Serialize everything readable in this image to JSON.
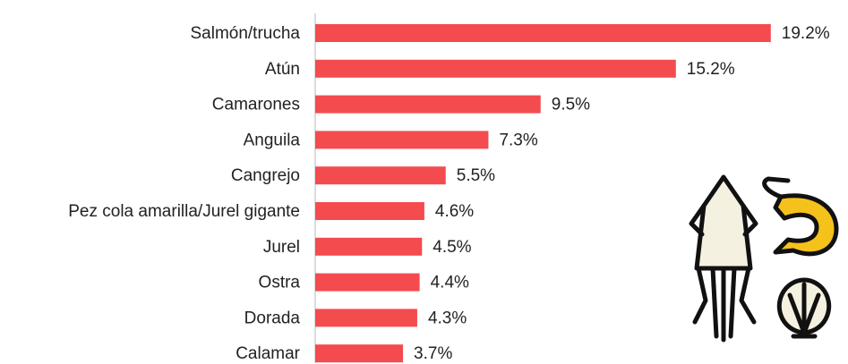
{
  "chart_data": {
    "type": "barh",
    "categories": [
      "Salmón/trucha",
      "Atún",
      "Camarones",
      "Anguila",
      "Cangrejo",
      "Pez cola amarilla/Jurel gigante",
      "Jurel",
      "Ostra",
      "Dorada",
      "Calamar"
    ],
    "values": [
      19.2,
      15.2,
      9.5,
      7.3,
      5.5,
      4.6,
      4.5,
      4.4,
      4.3,
      3.7
    ],
    "value_labels": [
      "19.2%",
      "15.2%",
      "9.5%",
      "7.3%",
      "5.5%",
      "4.6%",
      "4.5%",
      "4.4%",
      "4.3%",
      "3.7%"
    ],
    "color": "#f44b4f"
  }
}
